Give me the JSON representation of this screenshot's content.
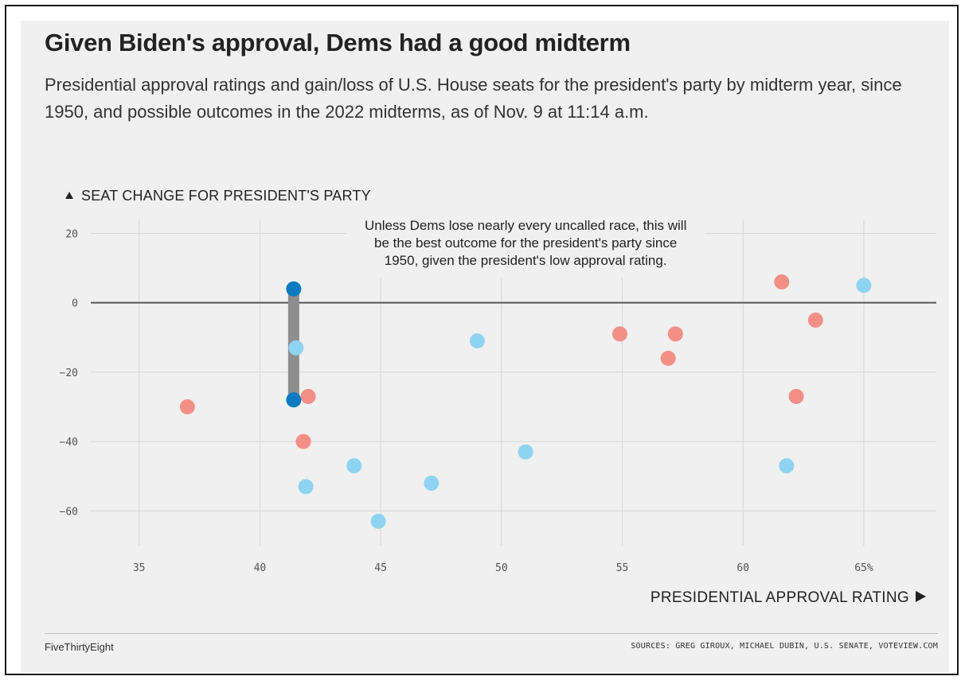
{
  "title": "Given Biden's approval, Dems had a good midterm",
  "subtitle": "Presidential approval ratings and gain/loss of U.S. House seats for the president's party by midterm year, since 1950, and possible outcomes in the 2022 midterms, as of Nov. 9 at 11:14 a.m.",
  "footer": {
    "brand": "FiveThirtyEight",
    "sources": "SOURCES: GREG GIROUX, MICHAEL DUBIN, U.S. SENATE, VOTEVIEW.COM"
  },
  "chart_data": {
    "type": "scatter",
    "title": "Given Biden's approval, Dems had a good midterm",
    "xlabel": "PRESIDENTIAL APPROVAL RATING",
    "ylabel": "SEAT CHANGE FOR PRESIDENT'S PARTY",
    "xlim": [
      33,
      68
    ],
    "ylim": [
      -70,
      24
    ],
    "x_ticks": [
      35,
      40,
      45,
      50,
      55,
      60,
      65
    ],
    "x_tick_labels": [
      "35",
      "40",
      "45",
      "50",
      "55",
      "60",
      "65%"
    ],
    "y_ticks": [
      20,
      0,
      -20,
      -40,
      -60
    ],
    "y_tick_labels": [
      "20",
      "0",
      "−20",
      "−40",
      "−60"
    ],
    "grid": true,
    "legend": "none",
    "colors": {
      "democratic": "#8fd3f2",
      "republican": "#f48f86",
      "outcome_2022": "#0a7ac2",
      "range_bar": "#8e8e8e",
      "zero_line": "#555555",
      "grid": "#d6d6d6"
    },
    "series": [
      {
        "party": "democratic",
        "points": [
          {
            "x": 41.5,
            "y": -13
          },
          {
            "x": 49,
            "y": -11
          },
          {
            "x": 65,
            "y": 5
          },
          {
            "x": 51,
            "y": -43
          },
          {
            "x": 61.8,
            "y": -47
          },
          {
            "x": 43.9,
            "y": -47
          },
          {
            "x": 41.9,
            "y": -53
          },
          {
            "x": 47.1,
            "y": -52
          },
          {
            "x": 44.9,
            "y": -63
          }
        ]
      },
      {
        "party": "republican",
        "points": [
          {
            "x": 37,
            "y": -30
          },
          {
            "x": 42,
            "y": -27
          },
          {
            "x": 41.8,
            "y": -40
          },
          {
            "x": 54.9,
            "y": -9
          },
          {
            "x": 57.2,
            "y": -9
          },
          {
            "x": 56.9,
            "y": -16
          },
          {
            "x": 61.6,
            "y": 6
          },
          {
            "x": 63,
            "y": -5
          },
          {
            "x": 62.2,
            "y": -27
          }
        ]
      }
    ],
    "outcome_2022": {
      "x": 41.4,
      "best": 4,
      "worst": -28
    },
    "annotation": {
      "lines": [
        "Unless Dems lose nearly every uncalled race, this will",
        "be the best outcome for the president's party since",
        "1950, given the president's low approval rating."
      ],
      "x": 51,
      "y": 21
    }
  }
}
